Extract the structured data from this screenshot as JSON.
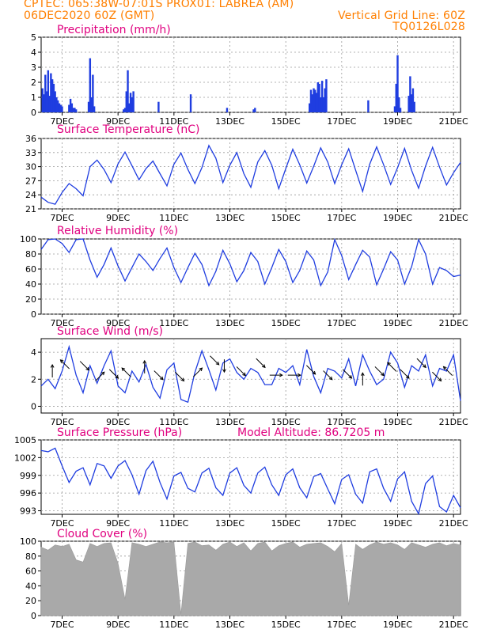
{
  "header": {
    "left_line1": "CPTEC:    065:38W-07:01S    PROX01: LABREA (AM)",
    "left_line2": "06DEC2020 60Z (GMT)",
    "right_line1": "Vertical Grid Line: 60Z",
    "right_line2": "TQ0126L028"
  },
  "x_axis_labels": [
    "7DEC",
    "9DEC",
    "11DEC",
    "13DEC",
    "15DEC",
    "17DEC",
    "19DEC",
    "21DEC"
  ],
  "colors": {
    "header": "#ff7f00",
    "panel_title": "#e0007f",
    "line": "#1f3de0",
    "bar": "#1f3de0",
    "cloud": "#a9a9a9",
    "grid": "#9a9a9a"
  },
  "chart_data": [
    {
      "type": "bar",
      "title": "Precipitation (mm/h)",
      "ylim": [
        0,
        5
      ],
      "yticks": [
        "0",
        "1",
        "2",
        "3",
        "4",
        "5"
      ],
      "x_unit": "days since 06DEC2020 18Z",
      "x": [
        0.05,
        0.1,
        0.15,
        0.2,
        0.25,
        0.3,
        0.35,
        0.4,
        0.45,
        0.5,
        0.55,
        0.6,
        0.65,
        0.7,
        0.75,
        1.0,
        1.05,
        1.1,
        1.15,
        1.2,
        1.25,
        1.7,
        1.75,
        1.8,
        1.85,
        1.9,
        2.95,
        3.0,
        3.05,
        3.1,
        3.15,
        3.2,
        3.25,
        3.3,
        4.2,
        5.35,
        6.65,
        7.6,
        7.65,
        9.6,
        9.65,
        9.7,
        9.75,
        9.8,
        9.85,
        9.9,
        9.95,
        10.0,
        10.05,
        10.1,
        10.15,
        10.2,
        11.7,
        12.65,
        12.7,
        12.75,
        12.8,
        12.85,
        13.15,
        13.2,
        13.25,
        13.3,
        13.35
      ],
      "values": [
        1.6,
        1.2,
        2.5,
        1.4,
        2.8,
        1.1,
        2.6,
        2.2,
        1.9,
        1.4,
        1.0,
        0.8,
        0.6,
        0.5,
        0.4,
        0.5,
        0.9,
        0.6,
        0.3,
        0.3,
        0.2,
        0.7,
        3.6,
        1.0,
        2.5,
        0.4,
        0.2,
        0.3,
        1.4,
        2.8,
        0.6,
        1.3,
        1.0,
        1.4,
        0.7,
        1.2,
        0.3,
        0.2,
        0.3,
        0.6,
        1.5,
        1.2,
        1.6,
        1.5,
        1.3,
        2.0,
        1.9,
        1.0,
        2.1,
        1.0,
        1.6,
        2.2,
        0.8,
        0.4,
        1.9,
        3.8,
        1.0,
        0.3,
        1.1,
        2.4,
        1.2,
        1.6,
        0.7
      ]
    },
    {
      "type": "line",
      "title": "Surface Temperature (nC)",
      "ylim": [
        21,
        36
      ],
      "yticks": [
        "21",
        "24",
        "27",
        "30",
        "33",
        "36"
      ],
      "x_unit": "days since 06DEC2020 18Z",
      "x": [
        0,
        0.25,
        0.5,
        0.75,
        1,
        1.25,
        1.5,
        1.75,
        2,
        2.25,
        2.5,
        2.75,
        3,
        3.25,
        3.5,
        3.75,
        4,
        4.25,
        4.5,
        4.75,
        5,
        5.25,
        5.5,
        5.75,
        6,
        6.25,
        6.5,
        6.75,
        7,
        7.25,
        7.5,
        7.75,
        8,
        8.25,
        8.5,
        8.75,
        9,
        9.25,
        9.5,
        9.75,
        10,
        10.25,
        10.5,
        10.75,
        11,
        11.25,
        11.5,
        11.75,
        12,
        12.25,
        12.5,
        12.75,
        13,
        13.25,
        13.5,
        13.75,
        14,
        14.25,
        14.5,
        14.75,
        15
      ],
      "values": [
        23.5,
        22.4,
        22.0,
        24.5,
        26.4,
        25.3,
        23.8,
        30.0,
        31.4,
        29.4,
        26.6,
        30.6,
        33.1,
        30.2,
        27.2,
        29.6,
        31.2,
        28.5,
        25.9,
        30.5,
        32.9,
        29.4,
        26.4,
        29.8,
        34.5,
        31.8,
        26.6,
        30.3,
        33.0,
        28.5,
        25.6,
        31.0,
        33.4,
        30.3,
        25.3,
        29.6,
        33.7,
        30.4,
        26.5,
        30.1,
        34.0,
        31.0,
        26.4,
        30.4,
        33.8,
        29.2,
        24.7,
        30.5,
        34.2,
        30.4,
        26.2,
        29.8,
        33.9,
        29.2,
        25.4,
        30.1,
        34.1,
        29.9,
        26.1,
        28.7,
        30.9
      ]
    },
    {
      "type": "line",
      "title": "Relative Humidity (%)",
      "ylim": [
        0,
        100
      ],
      "yticks": [
        "0",
        "20",
        "40",
        "60",
        "80",
        "100"
      ],
      "x_unit": "days since 06DEC2020 18Z",
      "x": [
        0,
        0.25,
        0.5,
        0.75,
        1,
        1.25,
        1.5,
        1.75,
        2,
        2.25,
        2.5,
        2.75,
        3,
        3.25,
        3.5,
        3.75,
        4,
        4.25,
        4.5,
        4.75,
        5,
        5.25,
        5.5,
        5.75,
        6,
        6.25,
        6.5,
        6.75,
        7,
        7.25,
        7.5,
        7.75,
        8,
        8.25,
        8.5,
        8.75,
        9,
        9.25,
        9.5,
        9.75,
        10,
        10.25,
        10.5,
        10.75,
        11,
        11.25,
        11.5,
        11.75,
        12,
        12.25,
        12.5,
        12.75,
        13,
        13.25,
        13.5,
        13.75,
        14,
        14.25,
        14.5,
        14.75,
        15
      ],
      "values": [
        86,
        99,
        100,
        94,
        82,
        99,
        100,
        72,
        49,
        66,
        88,
        64,
        44,
        62,
        80,
        70,
        58,
        74,
        88,
        62,
        42,
        62,
        81,
        66,
        38,
        57,
        85,
        67,
        43,
        58,
        82,
        70,
        40,
        62,
        86,
        70,
        42,
        58,
        84,
        72,
        38,
        56,
        99,
        78,
        46,
        66,
        85,
        76,
        39,
        60,
        83,
        72,
        40,
        63,
        99,
        80,
        40,
        62,
        58,
        50,
        52
      ]
    },
    {
      "type": "line",
      "title": "Surface Wind (m/s)",
      "ylim": [
        -0.5,
        5
      ],
      "yticks": [
        "0",
        "2",
        "4"
      ],
      "x_unit": "days since 06DEC2020 18Z",
      "x": [
        0,
        0.25,
        0.5,
        0.75,
        1,
        1.25,
        1.5,
        1.75,
        2,
        2.25,
        2.5,
        2.75,
        3,
        3.25,
        3.5,
        3.75,
        4,
        4.25,
        4.5,
        4.75,
        5,
        5.25,
        5.5,
        5.75,
        6,
        6.25,
        6.5,
        6.75,
        7,
        7.25,
        7.5,
        7.75,
        8,
        8.25,
        8.5,
        8.75,
        9,
        9.25,
        9.5,
        9.75,
        10,
        10.25,
        10.5,
        10.75,
        11,
        11.25,
        11.5,
        11.75,
        12,
        12.25,
        12.5,
        12.75,
        13,
        13.25,
        13.5,
        13.75,
        14,
        14.25,
        14.5,
        14.75,
        15
      ],
      "values": [
        1.5,
        2.0,
        1.3,
        2.6,
        4.4,
        2.3,
        1.0,
        3.0,
        1.7,
        3.0,
        4.1,
        1.5,
        1.0,
        2.6,
        1.8,
        3.1,
        1.4,
        0.6,
        2.7,
        3.2,
        0.5,
        0.3,
        2.5,
        4.1,
        2.7,
        1.2,
        3.2,
        3.5,
        2.5,
        2.0,
        2.8,
        2.5,
        1.6,
        1.6,
        2.8,
        2.5,
        3.0,
        1.6,
        4.2,
        2.2,
        1.0,
        2.8,
        2.6,
        2.1,
        3.5,
        1.5,
        3.8,
        2.6,
        1.6,
        2.0,
        4.0,
        3.2,
        1.4,
        3.0,
        2.6,
        3.8,
        1.5,
        2.8,
        2.6,
        3.8,
        0.4
      ],
      "arrows": [
        {
          "x": 0.4,
          "y": 2.6,
          "dir": "N"
        },
        {
          "x": 0.85,
          "y": 3.1,
          "dir": "NW"
        },
        {
          "x": 1.55,
          "y": 3.0,
          "dir": "SE"
        },
        {
          "x": 2.1,
          "y": 2.2,
          "dir": "NE"
        },
        {
          "x": 2.6,
          "y": 2.4,
          "dir": "SE"
        },
        {
          "x": 3.05,
          "y": 2.5,
          "dir": "NW"
        },
        {
          "x": 3.7,
          "y": 2.9,
          "dir": "N"
        },
        {
          "x": 4.2,
          "y": 2.3,
          "dir": "SE"
        },
        {
          "x": 4.95,
          "y": 2.2,
          "dir": "SE"
        },
        {
          "x": 5.6,
          "y": 2.5,
          "dir": "NE"
        },
        {
          "x": 6.2,
          "y": 3.4,
          "dir": "SE"
        },
        {
          "x": 6.55,
          "y": 3.0,
          "dir": "S"
        },
        {
          "x": 7.15,
          "y": 2.6,
          "dir": "SE"
        },
        {
          "x": 7.85,
          "y": 3.2,
          "dir": "SE"
        },
        {
          "x": 8.4,
          "y": 2.3,
          "dir": "E"
        },
        {
          "x": 9.05,
          "y": 2.3,
          "dir": "E"
        },
        {
          "x": 9.65,
          "y": 2.7,
          "dir": "SE"
        },
        {
          "x": 10.25,
          "y": 2.3,
          "dir": "SE"
        },
        {
          "x": 10.95,
          "y": 2.4,
          "dir": "SE"
        },
        {
          "x": 11.5,
          "y": 2.0,
          "dir": "N"
        },
        {
          "x": 12.1,
          "y": 2.6,
          "dir": "SE"
        },
        {
          "x": 12.55,
          "y": 2.9,
          "dir": "NW"
        },
        {
          "x": 13.0,
          "y": 2.4,
          "dir": "SE"
        },
        {
          "x": 13.6,
          "y": 3.2,
          "dir": "SE"
        },
        {
          "x": 14.15,
          "y": 2.2,
          "dir": "SE"
        },
        {
          "x": 14.55,
          "y": 2.6,
          "dir": "NW"
        }
      ]
    },
    {
      "type": "line",
      "title": "Surface Pressure (hPa)",
      "annotation": "Model Altitude: 86.7205 m",
      "ylim": [
        992.4,
        1005
      ],
      "yticks": [
        "993",
        "996",
        "999",
        "1002",
        "1005"
      ],
      "x_unit": "days since 06DEC2020 18Z",
      "x": [
        0,
        0.25,
        0.5,
        0.75,
        1,
        1.25,
        1.5,
        1.75,
        2,
        2.25,
        2.5,
        2.75,
        3,
        3.25,
        3.5,
        3.75,
        4,
        4.25,
        4.5,
        4.75,
        5,
        5.25,
        5.5,
        5.75,
        6,
        6.25,
        6.5,
        6.75,
        7,
        7.25,
        7.5,
        7.75,
        8,
        8.25,
        8.5,
        8.75,
        9,
        9.25,
        9.5,
        9.75,
        10,
        10.25,
        10.5,
        10.75,
        11,
        11.25,
        11.5,
        11.75,
        12,
        12.25,
        12.5,
        12.75,
        13,
        13.25,
        13.5,
        13.75,
        14,
        14.25,
        14.5,
        14.75,
        15
      ],
      "values": [
        1003.2,
        1003.0,
        1003.6,
        1000.6,
        997.8,
        999.7,
        1000.3,
        997.4,
        1001.0,
        1000.6,
        998.5,
        1000.6,
        1001.5,
        999.1,
        995.8,
        999.8,
        1001.4,
        997.8,
        995.0,
        998.9,
        999.5,
        996.8,
        996.2,
        999.4,
        1000.2,
        996.9,
        995.6,
        999.4,
        1000.3,
        997.3,
        996.0,
        999.4,
        1000.4,
        997.4,
        995.6,
        999.1,
        1000.1,
        996.9,
        995.2,
        998.8,
        999.3,
        996.7,
        994.2,
        998.3,
        999.1,
        995.8,
        994.3,
        999.6,
        1000.1,
        996.8,
        994.6,
        998.4,
        999.6,
        994.6,
        992.5,
        997.6,
        998.9,
        993.7,
        992.8,
        995.6,
        993.5
      ]
    },
    {
      "type": "area",
      "title": "Cloud Cover (%)",
      "ylim": [
        0,
        100
      ],
      "yticks": [
        "0",
        "20",
        "40",
        "60",
        "80",
        "100"
      ],
      "x_unit": "days since 06DEC2020 18Z",
      "x": [
        0,
        0.25,
        0.5,
        0.75,
        1,
        1.25,
        1.5,
        1.75,
        2,
        2.25,
        2.5,
        2.75,
        3,
        3.25,
        3.5,
        3.75,
        4,
        4.25,
        4.5,
        4.75,
        5,
        5.25,
        5.5,
        5.75,
        6,
        6.25,
        6.5,
        6.75,
        7,
        7.25,
        7.5,
        7.75,
        8,
        8.25,
        8.5,
        8.75,
        9,
        9.25,
        9.5,
        9.75,
        10,
        10.25,
        10.5,
        10.75,
        11,
        11.25,
        11.5,
        11.75,
        12,
        12.25,
        12.5,
        12.75,
        13,
        13.25,
        13.5,
        13.75,
        14,
        14.25,
        14.5,
        14.75,
        15
      ],
      "values": [
        92,
        88,
        95,
        93,
        96,
        75,
        72,
        97,
        93,
        97,
        98,
        70,
        22,
        98,
        96,
        93,
        96,
        99,
        98,
        99,
        2,
        97,
        99,
        94,
        95,
        88,
        96,
        99,
        93,
        98,
        87,
        97,
        99,
        87,
        94,
        97,
        99,
        92,
        96,
        97,
        98,
        93,
        86,
        97,
        14,
        96,
        89,
        95,
        99,
        96,
        98,
        95,
        89,
        98,
        95,
        92,
        96,
        98,
        94,
        97,
        95
      ]
    }
  ]
}
